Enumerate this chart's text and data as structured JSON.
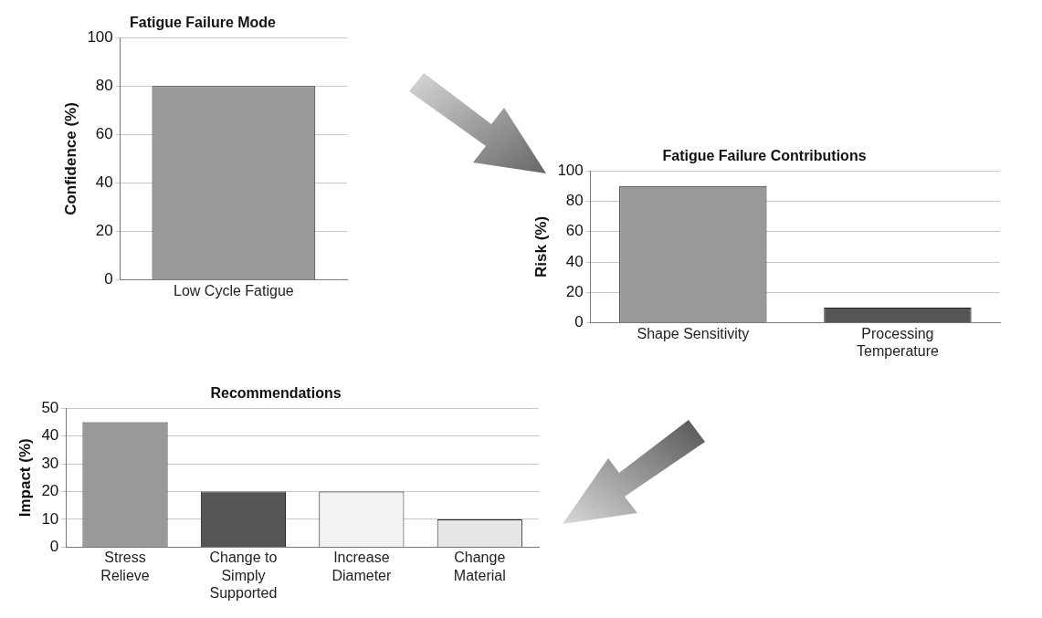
{
  "chart_data": [
    {
      "type": "bar",
      "title": "Fatigue Failure Mode",
      "ylabel": "Confidence (%)",
      "categories": [
        "Low Cycle Fatigue"
      ],
      "values": [
        80
      ],
      "colors": [
        "#999999"
      ],
      "ylim": [
        0,
        100
      ],
      "yticks": [
        0,
        20,
        40,
        60,
        80,
        100
      ],
      "grid": "y",
      "legend": false
    },
    {
      "type": "bar",
      "title": "Fatigue Failure Contributions",
      "ylabel": "Risk (%)",
      "categories": [
        "Shape Sensitivity",
        "Processing Temperature"
      ],
      "values": [
        90,
        10
      ],
      "colors": [
        "#999999",
        "#555555"
      ],
      "ylim": [
        0,
        100
      ],
      "yticks": [
        0,
        20,
        40,
        60,
        80,
        100
      ],
      "grid": "y",
      "legend": false
    },
    {
      "type": "bar",
      "title": "Recommendations",
      "ylabel": "Impact (%)",
      "categories": [
        "Stress Relieve",
        "Change to Simply Supported",
        "Increase Diameter",
        "Change Material"
      ],
      "values": [
        45,
        20,
        20,
        10
      ],
      "colors": [
        "#999999",
        "#555555",
        "#f2f2f2",
        "#e6e6e6"
      ],
      "ylim": [
        0,
        50
      ],
      "yticks": [
        0,
        10,
        20,
        30,
        40,
        50
      ],
      "grid": "y",
      "legend": false
    }
  ]
}
